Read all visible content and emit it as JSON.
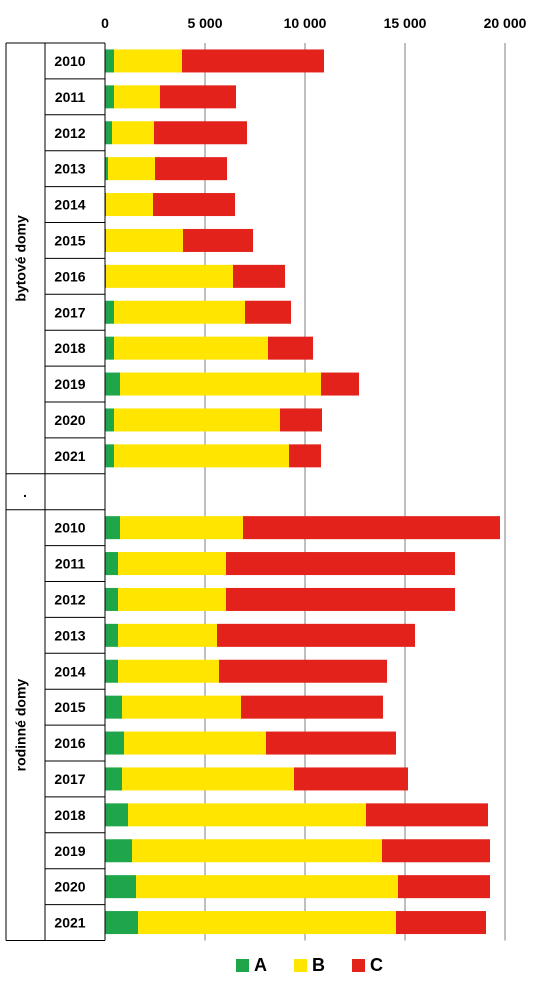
{
  "chart_data": {
    "type": "bar",
    "orientation": "horizontal",
    "stacked": true,
    "xlim": [
      0,
      20000
    ],
    "x_ticks": [
      0,
      5000,
      10000,
      15000,
      20000
    ],
    "x_tick_labels": [
      "0",
      "5 000",
      "10 000",
      "15 000",
      "20 000"
    ],
    "grid": "vertical",
    "legend_position": "bottom",
    "colors": {
      "A": "#1fa64a",
      "B": "#ffe500",
      "C": "#e3221c"
    },
    "groups": [
      {
        "label": "bytové domy",
        "categories": [
          "2010",
          "2011",
          "2012",
          "2013",
          "2014",
          "2015",
          "2016",
          "2017",
          "2018",
          "2019",
          "2020",
          "2021"
        ],
        "series": [
          {
            "name": "A",
            "values": [
              450,
              450,
              350,
              150,
              50,
              50,
              50,
              450,
              450,
              750,
              450,
              450
            ]
          },
          {
            "name": "B",
            "values": [
              3400,
              2300,
              2100,
              2350,
              2350,
              3850,
              6350,
              6550,
              7700,
              10050,
              8300,
              8750
            ]
          },
          {
            "name": "C",
            "values": [
              7100,
              3800,
              4650,
              3600,
              4100,
              3500,
              2600,
              2300,
              2250,
              1900,
              2100,
              1600
            ]
          }
        ]
      },
      {
        "label": ".",
        "categories": [],
        "series": []
      },
      {
        "label": "rodinné domy",
        "categories": [
          "2010",
          "2011",
          "2012",
          "2013",
          "2014",
          "2015",
          "2016",
          "2017",
          "2018",
          "2019",
          "2020",
          "2021"
        ],
        "series": [
          {
            "name": "A",
            "values": [
              750,
              650,
              650,
              650,
              650,
              850,
              950,
              850,
              1150,
              1350,
              1550,
              1650
            ]
          },
          {
            "name": "B",
            "values": [
              6150,
              5400,
              5400,
              4950,
              5050,
              5950,
              7100,
              8600,
              11900,
              12500,
              13100,
              12900
            ]
          },
          {
            "name": "C",
            "values": [
              12850,
              11450,
              11450,
              9900,
              8400,
              7100,
              6500,
              5700,
              6100,
              5400,
              4600,
              4500
            ]
          }
        ]
      }
    ],
    "legend": [
      "A",
      "B",
      "C"
    ]
  }
}
